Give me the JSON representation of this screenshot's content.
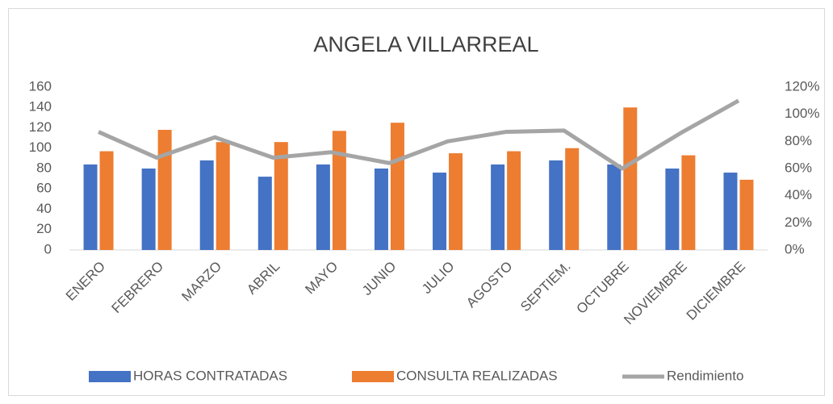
{
  "chart_data": {
    "type": "bar",
    "title": "ANGELA VILLARREAL",
    "categories": [
      "ENERO",
      "FEBRERO",
      "MARZO",
      "ABRIL",
      "MAYO",
      "JUNIO",
      "JULIO",
      "AGOSTO",
      "SEPTIEM.",
      "OCTUBRE",
      "NOVIEMBRE",
      "DICIEMBRE"
    ],
    "series": [
      {
        "name": "HORAS CONTRATADAS",
        "color": "#4472c4",
        "type": "bar",
        "values": [
          84,
          80,
          88,
          72,
          84,
          80,
          76,
          84,
          88,
          84,
          80,
          76
        ]
      },
      {
        "name": "CONSULTA REALIZADAS",
        "color": "#ed7d31",
        "type": "bar",
        "values": [
          97,
          118,
          106,
          106,
          117,
          125,
          95,
          97,
          100,
          140,
          93,
          69
        ]
      },
      {
        "name": "Rendimiento",
        "color": "#a5a5a5",
        "type": "line",
        "axis": "y2",
        "values": [
          87,
          68,
          83,
          68,
          72,
          64,
          80,
          87,
          88,
          60,
          86,
          110
        ]
      }
    ],
    "ylim": [
      0,
      160
    ],
    "yticks": [
      0,
      20,
      40,
      60,
      80,
      100,
      120,
      140,
      160
    ],
    "y2lim": [
      0,
      120
    ],
    "y2ticks": [
      {
        "value": 0,
        "label": "0%"
      },
      {
        "value": 20,
        "label": "20%"
      },
      {
        "value": 40,
        "label": "40%"
      },
      {
        "value": 60,
        "label": "60%"
      },
      {
        "value": 80,
        "label": "80%"
      },
      {
        "value": 100,
        "label": "100%"
      },
      {
        "value": 120,
        "label": "120%"
      }
    ],
    "legend": "bottom"
  }
}
